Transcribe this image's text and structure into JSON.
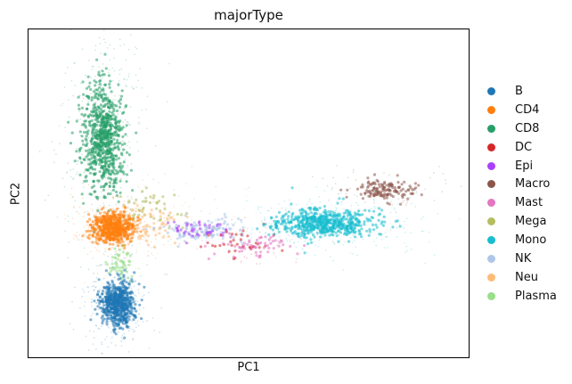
{
  "chart_data": {
    "type": "scatter",
    "title": "majorType",
    "xlabel": "PC1",
    "ylabel": "PC2",
    "xlim": [
      -10,
      40
    ],
    "ylim": [
      -15,
      20
    ],
    "grid": false,
    "ticks": false,
    "legend_placement": "right-outside",
    "series": [
      {
        "name": "B",
        "color": "#1f77b4",
        "center": [
          0.2,
          -9.3
        ],
        "spread": [
          1.6,
          1.9
        ]
      },
      {
        "name": "CD4",
        "color": "#ff7f0e",
        "center": [
          -0.3,
          -1.2
        ],
        "spread": [
          2.0,
          1.3
        ]
      },
      {
        "name": "CD8",
        "color": "#279e68",
        "center": [
          -1.5,
          8.5
        ],
        "spread": [
          1.9,
          4.8
        ]
      },
      {
        "name": "DC",
        "color": "#d62728",
        "center": [
          14,
          -3
        ],
        "spread": [
          4,
          1.2
        ]
      },
      {
        "name": "Epi",
        "color": "#aa40fc",
        "center": [
          10,
          -1.5
        ],
        "spread": [
          3,
          0.8
        ]
      },
      {
        "name": "Macro",
        "color": "#8c564b",
        "center": [
          30.5,
          2.8
        ],
        "spread": [
          3,
          0.9
        ]
      },
      {
        "name": "Mast",
        "color": "#e377c2",
        "center": [
          16,
          -3.2
        ],
        "spread": [
          4,
          1.0
        ]
      },
      {
        "name": "Mega",
        "color": "#b5bd61",
        "center": [
          4,
          1.0
        ],
        "spread": [
          3,
          1.5
        ]
      },
      {
        "name": "Mono",
        "color": "#17becf",
        "center": [
          23.7,
          -0.7
        ],
        "spread": [
          4.8,
          1.2
        ]
      },
      {
        "name": "NK",
        "color": "#aec7e8",
        "center": [
          10,
          -1.5
        ],
        "spread": [
          4,
          1.0
        ]
      },
      {
        "name": "Neu",
        "color": "#ffbb78",
        "center": [
          3,
          -1.0
        ],
        "spread": [
          3,
          1.5
        ]
      },
      {
        "name": "Plasma",
        "color": "#98df8a",
        "center": [
          0.5,
          -5
        ],
        "spread": [
          1.2,
          1.2
        ]
      }
    ]
  }
}
